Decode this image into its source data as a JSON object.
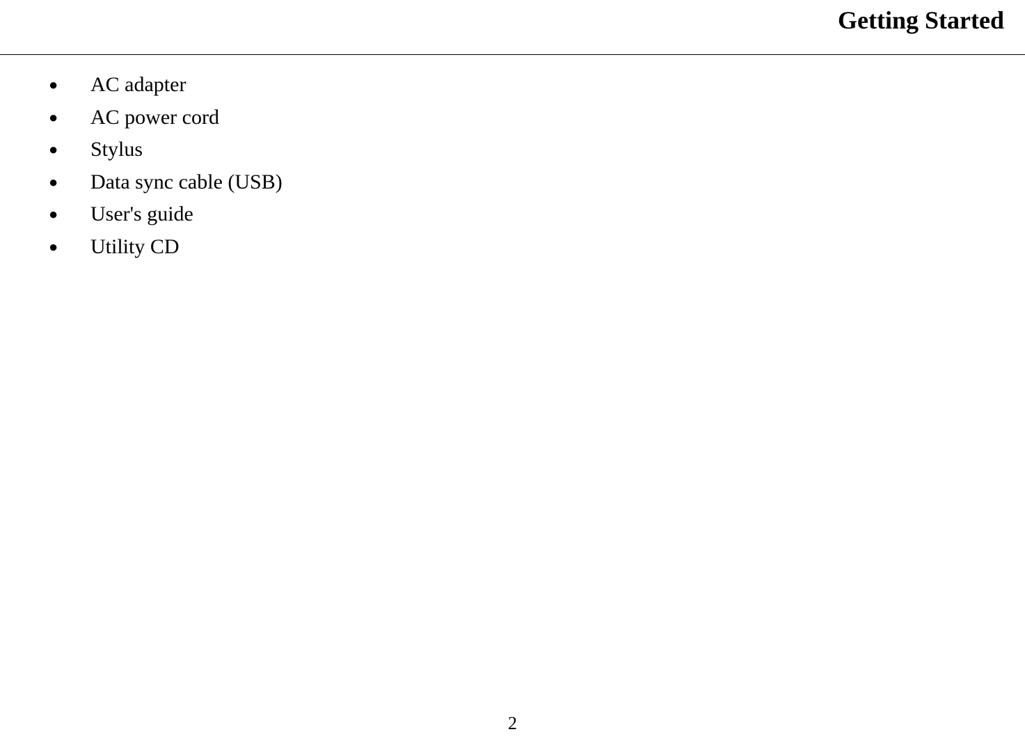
{
  "header": {
    "title": "Getting Started"
  },
  "list": {
    "items": [
      "AC adapter",
      "AC power cord",
      "Stylus",
      "Data sync cable (USB)",
      "User's guide",
      "Utility CD"
    ]
  },
  "footer": {
    "page_number": "2"
  },
  "style": {
    "background_color": "#ffffff",
    "text_color": "#000000",
    "divider_color": "#000000",
    "title_fontsize": 36,
    "list_fontsize": 30,
    "page_number_fontsize": 26,
    "font_family": "Times New Roman"
  }
}
